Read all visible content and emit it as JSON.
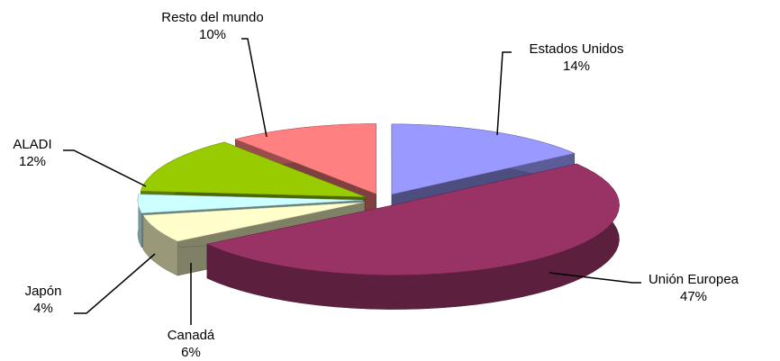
{
  "chart_data": {
    "type": "pie3d",
    "categories": [
      "Estados Unidos",
      "Unión Europea",
      "Canadá",
      "Japón",
      "ALADI",
      "Resto del mundo"
    ],
    "values": [
      14,
      47,
      6,
      4,
      12,
      10
    ],
    "value_labels": [
      "14%",
      "47%",
      "6%",
      "4%",
      "12%",
      "10%"
    ],
    "colors": [
      "#9999ff",
      "#993366",
      "#ffffcc",
      "#ccffff",
      "#99cc00",
      "#ff8080"
    ]
  }
}
